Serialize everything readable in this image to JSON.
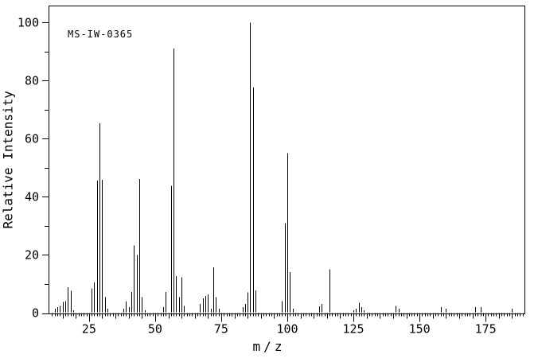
{
  "figure": {
    "background_color": "#ffffff",
    "stroke_color": "#000000",
    "annotation": "MS-IW-0365"
  },
  "chart_data": {
    "type": "bar",
    "subtype": "mass-spectrum-sticks",
    "title": "MS-IW-0365",
    "xlabel": "m/z",
    "ylabel": "Relative Intensity",
    "xlim": [
      10,
      190
    ],
    "ylim": [
      0,
      100
    ],
    "grid": false,
    "legend": "none",
    "x_major_ticks": [
      25,
      50,
      75,
      100,
      125,
      150,
      175
    ],
    "y_major_ticks": [
      0,
      20,
      40,
      60,
      80,
      100
    ],
    "x_minor_tick_step": 1,
    "x_medium_tick_step": 5,
    "y_minor_ticks": [
      10,
      30,
      50,
      70,
      90
    ],
    "peaks": [
      [
        12,
        1.5
      ],
      [
        13,
        2
      ],
      [
        14,
        2.5
      ],
      [
        15,
        3.8
      ],
      [
        16,
        4.1
      ],
      [
        17,
        8.9
      ],
      [
        18,
        7.7
      ],
      [
        19,
        1
      ],
      [
        26,
        8.5
      ],
      [
        27,
        10.5
      ],
      [
        28,
        45.6
      ],
      [
        29,
        65.3
      ],
      [
        30,
        45.8
      ],
      [
        31,
        5.5
      ],
      [
        32,
        1.5
      ],
      [
        38,
        1.5
      ],
      [
        39,
        4
      ],
      [
        40,
        2
      ],
      [
        41,
        7.3
      ],
      [
        42,
        23.3
      ],
      [
        43,
        20
      ],
      [
        44,
        46.1
      ],
      [
        45,
        5.5
      ],
      [
        46,
        1
      ],
      [
        53,
        2
      ],
      [
        54,
        7.3
      ],
      [
        56,
        43.8
      ],
      [
        57,
        91
      ],
      [
        58,
        12.8
      ],
      [
        59,
        5.5
      ],
      [
        60,
        12.3
      ],
      [
        61,
        2.5
      ],
      [
        67,
        3.2
      ],
      [
        68,
        5
      ],
      [
        69,
        5.9
      ],
      [
        70,
        6.4
      ],
      [
        71,
        1.5
      ],
      [
        72,
        15.7
      ],
      [
        73,
        5.5
      ],
      [
        74,
        1.5
      ],
      [
        83,
        2
      ],
      [
        84,
        3.2
      ],
      [
        85,
        7.1
      ],
      [
        86,
        100
      ],
      [
        87,
        77.6
      ],
      [
        88,
        7.8
      ],
      [
        98,
        4.1
      ],
      [
        99,
        31
      ],
      [
        100,
        55.1
      ],
      [
        101,
        14.1
      ],
      [
        102,
        1.5
      ],
      [
        112,
        2.3
      ],
      [
        113,
        3.2
      ],
      [
        116,
        15.1
      ],
      [
        125,
        1
      ],
      [
        126,
        1.5
      ],
      [
        127,
        3.5
      ],
      [
        128,
        2
      ],
      [
        129,
        1
      ],
      [
        141,
        2.5
      ],
      [
        142,
        1.5
      ],
      [
        158,
        2
      ],
      [
        160,
        1.5
      ],
      [
        171,
        2
      ],
      [
        173,
        2
      ],
      [
        185,
        1.5
      ]
    ]
  }
}
